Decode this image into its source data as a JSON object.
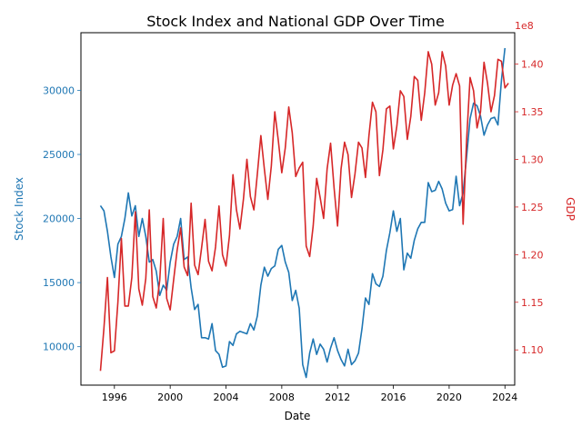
{
  "chart_data": {
    "type": "line",
    "title": "Stock Index and National GDP Over Time",
    "xlabel": "Date",
    "ylabel_left": "Stock Index",
    "ylabel_right": "GDP",
    "right_axis_multiplier": "1e8",
    "xlim": [
      1993.6,
      2024.7
    ],
    "ylim_left": [
      7000,
      34500
    ],
    "ylim_right": [
      1.063,
      1.433
    ],
    "x_ticks": [
      {
        "value": 1996,
        "label": "1996"
      },
      {
        "value": 2000,
        "label": "2000"
      },
      {
        "value": 2004,
        "label": "2004"
      },
      {
        "value": 2008,
        "label": "2008"
      },
      {
        "value": 2012,
        "label": "2012"
      },
      {
        "value": 2016,
        "label": "2016"
      },
      {
        "value": 2020,
        "label": "2020"
      },
      {
        "value": 2024,
        "label": "2024"
      }
    ],
    "y_ticks_left": [
      {
        "value": 10000,
        "label": "10000"
      },
      {
        "value": 15000,
        "label": "15000"
      },
      {
        "value": 20000,
        "label": "20000"
      },
      {
        "value": 25000,
        "label": "25000"
      },
      {
        "value": 30000,
        "label": "30000"
      }
    ],
    "y_ticks_right": [
      {
        "value": 1.1,
        "label": "1.10"
      },
      {
        "value": 1.15,
        "label": "1.15"
      },
      {
        "value": 1.2,
        "label": "1.20"
      },
      {
        "value": 1.25,
        "label": "1.25"
      },
      {
        "value": 1.3,
        "label": "1.30"
      },
      {
        "value": 1.35,
        "label": "1.35"
      },
      {
        "value": 1.4,
        "label": "1.40"
      }
    ],
    "grid": false,
    "legend": "none",
    "colors": {
      "stock": "#1f77b4",
      "gdp": "#d62728"
    },
    "series": [
      {
        "axis": "left",
        "color": "#1f77b4",
        "points": [
          [
            1995.0,
            21000
          ],
          [
            1995.25,
            20600
          ],
          [
            1995.5,
            19000
          ],
          [
            1995.75,
            17000
          ],
          [
            1996.0,
            15400
          ],
          [
            1996.25,
            18000
          ],
          [
            1996.5,
            18600
          ],
          [
            1996.75,
            20000
          ],
          [
            1997.0,
            22000
          ],
          [
            1997.25,
            20200
          ],
          [
            1997.5,
            21000
          ],
          [
            1997.75,
            18600
          ],
          [
            1998.0,
            20000
          ],
          [
            1998.25,
            18600
          ],
          [
            1998.5,
            16600
          ],
          [
            1998.75,
            16800
          ],
          [
            1999.0,
            15900
          ],
          [
            1999.25,
            14000
          ],
          [
            1999.5,
            14800
          ],
          [
            1999.75,
            14400
          ],
          [
            2000.0,
            16600
          ],
          [
            2000.25,
            18000
          ],
          [
            2000.5,
            18600
          ],
          [
            2000.75,
            20000
          ],
          [
            2001.0,
            16800
          ],
          [
            2001.25,
            17000
          ],
          [
            2001.5,
            14600
          ],
          [
            2001.75,
            12900
          ],
          [
            2002.0,
            13300
          ],
          [
            2002.25,
            10700
          ],
          [
            2002.5,
            10700
          ],
          [
            2002.75,
            10600
          ],
          [
            2003.0,
            11800
          ],
          [
            2003.25,
            9700
          ],
          [
            2003.5,
            9400
          ],
          [
            2003.75,
            8400
          ],
          [
            2004.0,
            8500
          ],
          [
            2004.25,
            10400
          ],
          [
            2004.5,
            10100
          ],
          [
            2004.75,
            11000
          ],
          [
            2005.0,
            11200
          ],
          [
            2005.25,
            11100
          ],
          [
            2005.5,
            11000
          ],
          [
            2005.75,
            11800
          ],
          [
            2006.0,
            11300
          ],
          [
            2006.25,
            12400
          ],
          [
            2006.5,
            14800
          ],
          [
            2006.75,
            16200
          ],
          [
            2007.0,
            15500
          ],
          [
            2007.25,
            16100
          ],
          [
            2007.5,
            16300
          ],
          [
            2007.75,
            17600
          ],
          [
            2008.0,
            17900
          ],
          [
            2008.25,
            16600
          ],
          [
            2008.5,
            15800
          ],
          [
            2008.75,
            13600
          ],
          [
            2009.0,
            14400
          ],
          [
            2009.25,
            13000
          ],
          [
            2009.5,
            8600
          ],
          [
            2009.75,
            7600
          ],
          [
            2010.0,
            9500
          ],
          [
            2010.25,
            10600
          ],
          [
            2010.5,
            9400
          ],
          [
            2010.75,
            10200
          ],
          [
            2011.0,
            9800
          ],
          [
            2011.25,
            8800
          ],
          [
            2011.5,
            9900
          ],
          [
            2011.75,
            10700
          ],
          [
            2012.0,
            9700
          ],
          [
            2012.25,
            9000
          ],
          [
            2012.5,
            8500
          ],
          [
            2012.75,
            9800
          ],
          [
            2013.0,
            8600
          ],
          [
            2013.25,
            8900
          ],
          [
            2013.5,
            9500
          ],
          [
            2013.75,
            11400
          ],
          [
            2014.0,
            13800
          ],
          [
            2014.25,
            13300
          ],
          [
            2014.5,
            15700
          ],
          [
            2014.75,
            14900
          ],
          [
            2015.0,
            14700
          ],
          [
            2015.25,
            15500
          ],
          [
            2015.5,
            17500
          ],
          [
            2015.75,
            18900
          ],
          [
            2016.0,
            20600
          ],
          [
            2016.25,
            19000
          ],
          [
            2016.5,
            20000
          ],
          [
            2016.75,
            16000
          ],
          [
            2017.0,
            17300
          ],
          [
            2017.25,
            16900
          ],
          [
            2017.5,
            18300
          ],
          [
            2017.75,
            19200
          ],
          [
            2018.0,
            19700
          ],
          [
            2018.25,
            19700
          ],
          [
            2018.5,
            22800
          ],
          [
            2018.75,
            22100
          ],
          [
            2019.0,
            22200
          ],
          [
            2019.25,
            22900
          ],
          [
            2019.5,
            22300
          ],
          [
            2019.75,
            21200
          ],
          [
            2020.0,
            20600
          ],
          [
            2020.25,
            20700
          ],
          [
            2020.5,
            23300
          ],
          [
            2020.75,
            21000
          ],
          [
            2021.0,
            22000
          ],
          [
            2021.25,
            24800
          ],
          [
            2021.5,
            27800
          ],
          [
            2021.75,
            29000
          ],
          [
            2022.0,
            28800
          ],
          [
            2022.25,
            28000
          ],
          [
            2022.5,
            26500
          ],
          [
            2022.75,
            27300
          ],
          [
            2023.0,
            27800
          ],
          [
            2023.25,
            27900
          ],
          [
            2023.5,
            27300
          ],
          [
            2023.75,
            30800
          ],
          [
            2024.0,
            33300
          ]
        ]
      },
      {
        "axis": "right",
        "color": "#d62728",
        "points": [
          [
            1995.0,
            1.078
          ],
          [
            1995.25,
            1.123
          ],
          [
            1995.5,
            1.176
          ],
          [
            1995.75,
            1.097
          ],
          [
            1996.0,
            1.099
          ],
          [
            1996.25,
            1.15
          ],
          [
            1996.5,
            1.217
          ],
          [
            1996.75,
            1.146
          ],
          [
            1997.0,
            1.146
          ],
          [
            1997.25,
            1.176
          ],
          [
            1997.5,
            1.245
          ],
          [
            1997.75,
            1.164
          ],
          [
            1998.0,
            1.147
          ],
          [
            1998.25,
            1.175
          ],
          [
            1998.5,
            1.247
          ],
          [
            1998.75,
            1.156
          ],
          [
            1999.0,
            1.144
          ],
          [
            1999.25,
            1.173
          ],
          [
            1999.5,
            1.238
          ],
          [
            1999.75,
            1.154
          ],
          [
            2000.0,
            1.142
          ],
          [
            2000.25,
            1.174
          ],
          [
            2000.5,
            1.205
          ],
          [
            2000.75,
            1.228
          ],
          [
            2001.0,
            1.187
          ],
          [
            2001.25,
            1.178
          ],
          [
            2001.5,
            1.254
          ],
          [
            2001.75,
            1.189
          ],
          [
            2002.0,
            1.179
          ],
          [
            2002.25,
            1.207
          ],
          [
            2002.5,
            1.237
          ],
          [
            2002.75,
            1.193
          ],
          [
            2003.0,
            1.183
          ],
          [
            2003.25,
            1.208
          ],
          [
            2003.5,
            1.251
          ],
          [
            2003.75,
            1.2
          ],
          [
            2004.0,
            1.188
          ],
          [
            2004.25,
            1.22
          ],
          [
            2004.5,
            1.284
          ],
          [
            2004.75,
            1.247
          ],
          [
            2005.0,
            1.227
          ],
          [
            2005.25,
            1.258
          ],
          [
            2005.5,
            1.3
          ],
          [
            2005.75,
            1.261
          ],
          [
            2006.0,
            1.247
          ],
          [
            2006.25,
            1.285
          ],
          [
            2006.5,
            1.325
          ],
          [
            2006.75,
            1.29
          ],
          [
            2007.0,
            1.258
          ],
          [
            2007.25,
            1.293
          ],
          [
            2007.5,
            1.35
          ],
          [
            2007.75,
            1.32
          ],
          [
            2008.0,
            1.286
          ],
          [
            2008.25,
            1.312
          ],
          [
            2008.5,
            1.355
          ],
          [
            2008.75,
            1.328
          ],
          [
            2009.0,
            1.282
          ],
          [
            2009.25,
            1.291
          ],
          [
            2009.5,
            1.297
          ],
          [
            2009.75,
            1.209
          ],
          [
            2010.0,
            1.198
          ],
          [
            2010.25,
            1.23
          ],
          [
            2010.5,
            1.28
          ],
          [
            2010.75,
            1.26
          ],
          [
            2011.0,
            1.238
          ],
          [
            2011.25,
            1.29
          ],
          [
            2011.5,
            1.317
          ],
          [
            2011.75,
            1.27
          ],
          [
            2012.0,
            1.23
          ],
          [
            2012.25,
            1.29
          ],
          [
            2012.5,
            1.318
          ],
          [
            2012.75,
            1.305
          ],
          [
            2013.0,
            1.26
          ],
          [
            2013.25,
            1.285
          ],
          [
            2013.5,
            1.318
          ],
          [
            2013.75,
            1.312
          ],
          [
            2014.0,
            1.281
          ],
          [
            2014.25,
            1.325
          ],
          [
            2014.5,
            1.36
          ],
          [
            2014.75,
            1.35
          ],
          [
            2015.0,
            1.283
          ],
          [
            2015.25,
            1.31
          ],
          [
            2015.5,
            1.353
          ],
          [
            2015.75,
            1.356
          ],
          [
            2016.0,
            1.311
          ],
          [
            2016.25,
            1.335
          ],
          [
            2016.5,
            1.372
          ],
          [
            2016.75,
            1.366
          ],
          [
            2017.0,
            1.321
          ],
          [
            2017.25,
            1.345
          ],
          [
            2017.5,
            1.387
          ],
          [
            2017.75,
            1.383
          ],
          [
            2018.0,
            1.341
          ],
          [
            2018.25,
            1.37
          ],
          [
            2018.5,
            1.413
          ],
          [
            2018.75,
            1.4
          ],
          [
            2019.0,
            1.357
          ],
          [
            2019.25,
            1.37
          ],
          [
            2019.5,
            1.413
          ],
          [
            2019.75,
            1.398
          ],
          [
            2020.0,
            1.357
          ],
          [
            2020.25,
            1.378
          ],
          [
            2020.5,
            1.39
          ],
          [
            2020.75,
            1.377
          ],
          [
            2021.0,
            1.232
          ],
          [
            2021.25,
            1.32
          ],
          [
            2021.5,
            1.386
          ],
          [
            2021.75,
            1.372
          ],
          [
            2022.0,
            1.333
          ],
          [
            2022.25,
            1.35
          ],
          [
            2022.5,
            1.402
          ],
          [
            2022.75,
            1.38
          ],
          [
            2023.0,
            1.35
          ],
          [
            2023.25,
            1.367
          ],
          [
            2023.5,
            1.405
          ],
          [
            2023.75,
            1.403
          ],
          [
            2024.0,
            1.375
          ],
          [
            2024.25,
            1.38
          ]
        ]
      }
    ]
  }
}
